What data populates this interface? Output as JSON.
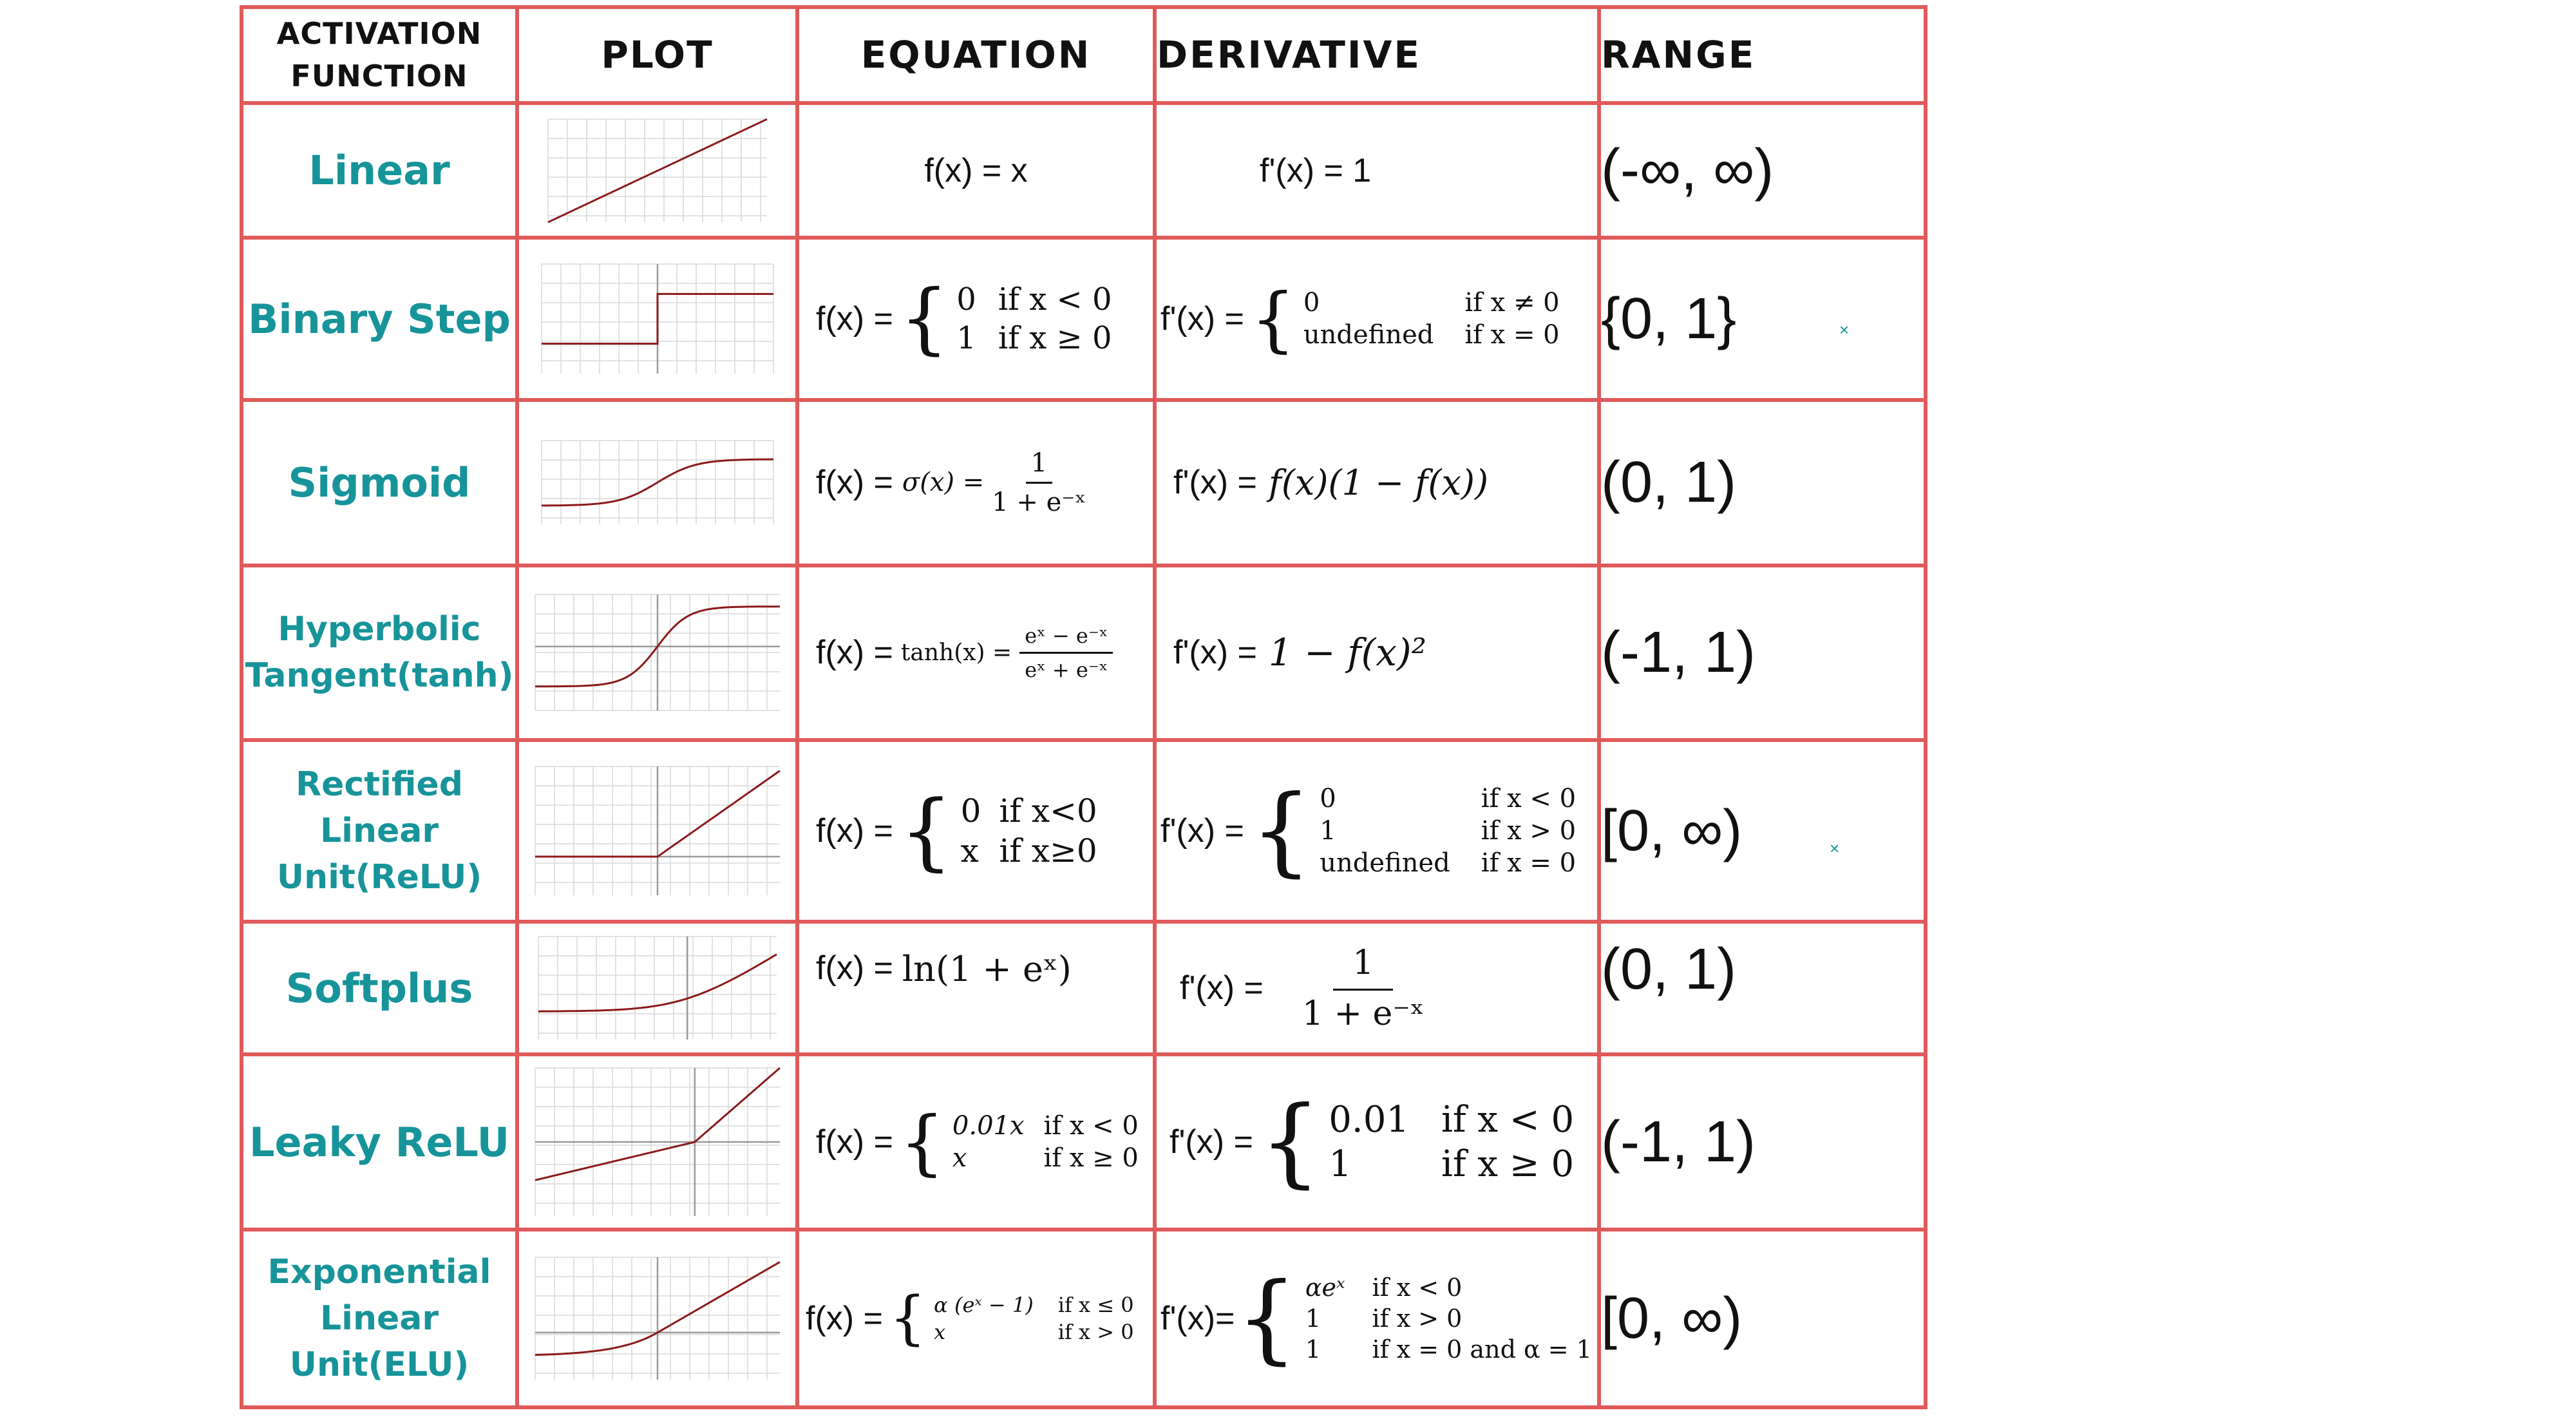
{
  "table": {
    "headers": {
      "name_line1": "ACTIVATION",
      "name_line2": "FUNCTION",
      "plot": "PLOT",
      "equation": "EQUATION",
      "derivative": "DERIVATIVE",
      "range": "RANGE"
    },
    "rows": [
      {
        "name": "Linear",
        "equation": {
          "text": "f(x) = x"
        },
        "derivative": {
          "text": "f'(x) = 1"
        },
        "range": "(-∞, ∞)"
      },
      {
        "name": "Binary Step",
        "equation": {
          "prefix": "f(x) =",
          "c1_val": "0",
          "c1_cond": "if x < 0",
          "c2_val": "1",
          "c2_cond": "if x ≥ 0"
        },
        "derivative": {
          "prefix": "f'(x) =",
          "c1_val": "0",
          "c1_cond": "if x ≠ 0",
          "c2_val": "undefined",
          "c2_cond": "if x = 0"
        },
        "range": "{0, 1}"
      },
      {
        "name": "Sigmoid",
        "equation": {
          "prefix": "f(x) =",
          "lhs": "σ(x) =",
          "num": "1",
          "den": "1 + e⁻ˣ"
        },
        "derivative": {
          "prefix": "f'(x) =",
          "expr": "f(x)(1 − f(x))"
        },
        "range": "(0, 1)"
      },
      {
        "name_line1": "Hyperbolic",
        "name_line2": "Tangent(tanh)",
        "equation": {
          "prefix": "f(x) =",
          "lhs": "tanh(x) =",
          "num": "eˣ − e⁻ˣ",
          "den": "eˣ + e⁻ˣ"
        },
        "derivative": {
          "prefix": "f'(x) =",
          "expr": "1 − f(x)²"
        },
        "range": "(-1, 1)"
      },
      {
        "name_line1": "Rectified Linear",
        "name_line2": "Unit(ReLU)",
        "equation": {
          "prefix": "f(x) =",
          "c1_val": "0",
          "c1_cond": "if x<0",
          "c2_val": "x",
          "c2_cond": "if x≥0"
        },
        "derivative": {
          "prefix": "f'(x) =",
          "c1_val": "0",
          "c1_cond": "if x < 0",
          "c2_val": "1",
          "c2_cond": "if x > 0",
          "c3_val": "undefined",
          "c3_cond": "if x = 0"
        },
        "range": "[0, ∞)"
      },
      {
        "name": "Softplus",
        "equation": {
          "prefix": "f(x) =",
          "expr": "ln(1 + eˣ)"
        },
        "derivative": {
          "prefix": "f'(x) =",
          "num": "1",
          "den": "1 + e⁻ˣ"
        },
        "range": "(0, 1)"
      },
      {
        "name": "Leaky ReLU",
        "equation": {
          "prefix": "f(x) =",
          "c1_val": "0.01x",
          "c1_cond": "if x < 0",
          "c2_val": "x",
          "c2_cond": "if x ≥ 0"
        },
        "derivative": {
          "prefix": "f'(x) =",
          "c1_val": "0.01",
          "c1_cond": "if x < 0",
          "c2_val": "1",
          "c2_cond": "if x ≥ 0"
        },
        "range": "(-1, 1)"
      },
      {
        "name_line1": "Exponential",
        "name_line2": "Linear Unit(ELU)",
        "equation": {
          "prefix": "f(x) =",
          "c1_val": "α (eˣ − 1)",
          "c1_cond": "if x ≤ 0",
          "c2_val": "x",
          "c2_cond": "if x > 0"
        },
        "derivative": {
          "prefix": "f'(x)=",
          "c1_val": "αeˣ",
          "c1_cond": "if x < 0",
          "c2_val": "1",
          "c2_cond": "if x > 0",
          "c3_val": "1",
          "c3_cond": "if x = 0 and α = 1"
        },
        "range": "[0, ∞)"
      }
    ]
  },
  "style": {
    "border_color": "#e05a5a",
    "name_color": "#17949a",
    "plot_curve_color": "#8b1a1a",
    "plot_grid_color": "#d9d9d9"
  }
}
